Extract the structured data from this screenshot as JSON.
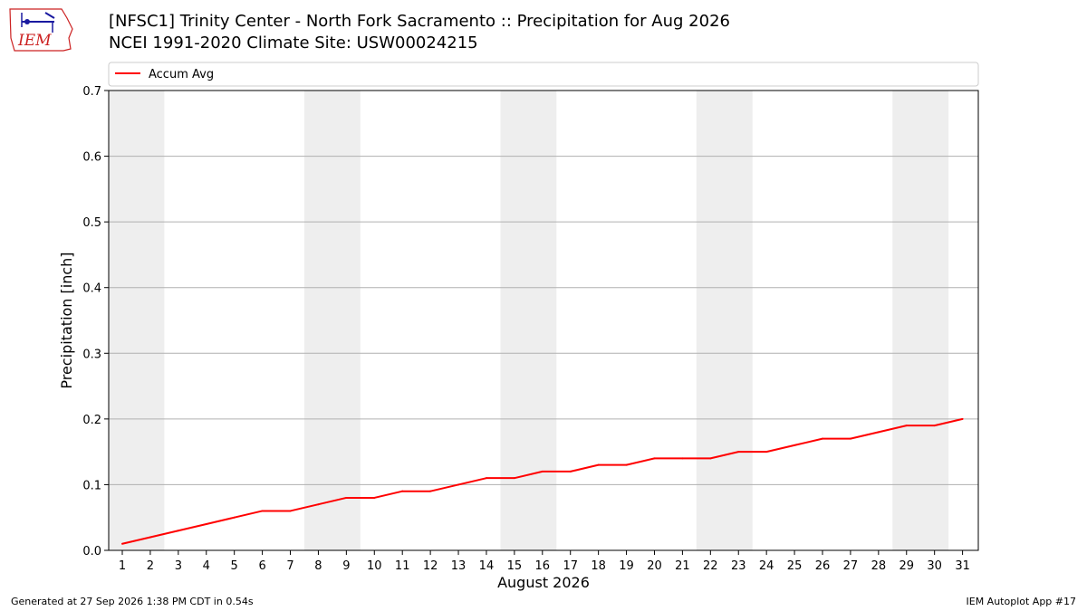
{
  "header": {
    "title": "[NFSC1] Trinity Center - North Fork Sacramento :: Precipitation for Aug 2026",
    "subtitle": "NCEI 1991-2020 Climate Site: USW00024215",
    "logo_text": "IEM"
  },
  "footer": {
    "generated": "Generated at 27 Sep 2026 1:38 PM CDT in 0.54s",
    "app": "IEM Autoplot App #17"
  },
  "colors": {
    "line": "#ff0000",
    "weekend_band": "#eeeeee",
    "grid": "#b0b0b0",
    "logo": "#cc2222"
  },
  "chart_data": {
    "type": "line",
    "xlabel": "August 2026",
    "ylabel": "Precipitation [inch]",
    "ylim": [
      0,
      0.7
    ],
    "yticks": [
      "0.0",
      "0.1",
      "0.2",
      "0.3",
      "0.4",
      "0.5",
      "0.6",
      "0.7"
    ],
    "grid": "horizontal",
    "legend_position": "top",
    "categories": [
      "1",
      "2",
      "3",
      "4",
      "5",
      "6",
      "7",
      "8",
      "9",
      "10",
      "11",
      "12",
      "13",
      "14",
      "15",
      "16",
      "17",
      "18",
      "19",
      "20",
      "21",
      "22",
      "23",
      "24",
      "25",
      "26",
      "27",
      "28",
      "29",
      "30",
      "31"
    ],
    "weekend_days": [
      [
        1,
        2
      ],
      [
        8,
        9
      ],
      [
        15,
        16
      ],
      [
        22,
        23
      ],
      [
        29,
        30
      ]
    ],
    "series": [
      {
        "name": "Accum Avg",
        "values": [
          0.01,
          0.02,
          0.03,
          0.04,
          0.05,
          0.06,
          0.06,
          0.07,
          0.08,
          0.08,
          0.09,
          0.09,
          0.1,
          0.11,
          0.11,
          0.12,
          0.12,
          0.13,
          0.13,
          0.14,
          0.14,
          0.14,
          0.15,
          0.15,
          0.16,
          0.17,
          0.17,
          0.18,
          0.19,
          0.19,
          0.2
        ]
      }
    ]
  }
}
